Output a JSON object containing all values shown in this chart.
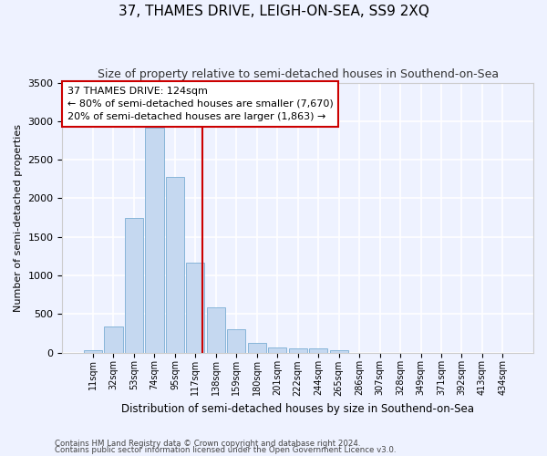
{
  "title": "37, THAMES DRIVE, LEIGH-ON-SEA, SS9 2XQ",
  "subtitle": "Size of property relative to semi-detached houses in Southend-on-Sea",
  "xlabel": "Distribution of semi-detached houses by size in Southend-on-Sea",
  "ylabel": "Number of semi-detached properties",
  "footnote1": "Contains HM Land Registry data © Crown copyright and database right 2024.",
  "footnote2": "Contains public sector information licensed under the Open Government Licence v3.0.",
  "bar_labels": [
    "11sqm",
    "32sqm",
    "53sqm",
    "74sqm",
    "95sqm",
    "117sqm",
    "138sqm",
    "159sqm",
    "180sqm",
    "201sqm",
    "222sqm",
    "244sqm",
    "265sqm",
    "286sqm",
    "307sqm",
    "328sqm",
    "349sqm",
    "371sqm",
    "392sqm",
    "413sqm",
    "434sqm"
  ],
  "bar_values": [
    30,
    340,
    1750,
    2920,
    2280,
    1170,
    590,
    300,
    130,
    70,
    55,
    55,
    25,
    0,
    0,
    0,
    0,
    0,
    0,
    0,
    0
  ],
  "bar_color": "#c5d8f0",
  "bar_edgecolor": "#7aaed4",
  "property_line_x": 5.33,
  "annotation_text": "37 THAMES DRIVE: 124sqm\n← 80% of semi-detached houses are smaller (7,670)\n20% of semi-detached houses are larger (1,863) →",
  "vline_color": "#cc0000",
  "ylim": [
    0,
    3500
  ],
  "bg_color": "#eef2ff",
  "grid_color": "#ffffff",
  "annotation_box_color": "#ffffff",
  "annotation_box_edgecolor": "#cc0000"
}
